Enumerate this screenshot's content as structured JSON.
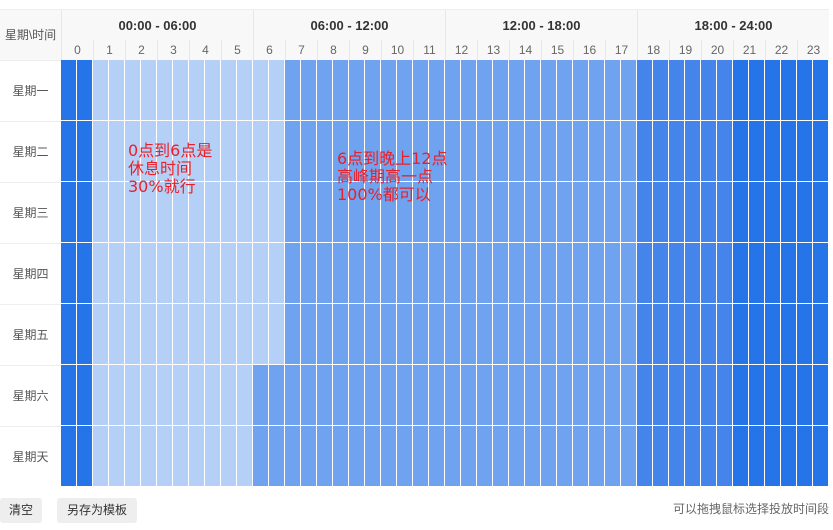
{
  "corner_label": "星期\\时间",
  "periods": [
    "00:00 - 06:00",
    "06:00 - 12:00",
    "12:00 - 18:00",
    "18:00 - 24:00"
  ],
  "hours": [
    "0",
    "1",
    "2",
    "3",
    "4",
    "5",
    "6",
    "7",
    "8",
    "9",
    "10",
    "11",
    "12",
    "13",
    "14",
    "15",
    "16",
    "17",
    "18",
    "19",
    "20",
    "21",
    "22",
    "23"
  ],
  "days": [
    "星期一",
    "星期二",
    "星期三",
    "星期四",
    "星期五",
    "星期六",
    "星期天"
  ],
  "level_colors": [
    "#ffffff",
    "#b5d0f6",
    "#6fa3ef",
    "#4584eb",
    "#2574e8"
  ],
  "schedule_levels": [
    [
      4,
      1,
      1,
      1,
      1,
      1,
      1,
      2,
      2,
      2,
      2,
      2,
      2,
      2,
      2,
      2,
      2,
      2,
      3,
      3,
      3,
      4,
      4,
      4
    ],
    [
      4,
      1,
      1,
      1,
      1,
      1,
      1,
      2,
      2,
      2,
      2,
      2,
      2,
      2,
      2,
      2,
      2,
      2,
      3,
      3,
      3,
      4,
      4,
      4
    ],
    [
      4,
      1,
      1,
      1,
      1,
      1,
      1,
      2,
      2,
      2,
      2,
      2,
      2,
      2,
      2,
      2,
      2,
      2,
      3,
      3,
      3,
      4,
      4,
      4
    ],
    [
      4,
      1,
      1,
      1,
      1,
      1,
      1,
      2,
      2,
      2,
      2,
      2,
      2,
      2,
      2,
      2,
      2,
      2,
      3,
      3,
      3,
      4,
      4,
      4
    ],
    [
      4,
      1,
      1,
      1,
      1,
      1,
      1,
      2,
      2,
      2,
      2,
      2,
      2,
      2,
      2,
      2,
      2,
      2,
      3,
      3,
      3,
      4,
      4,
      4
    ],
    [
      4,
      1,
      1,
      1,
      1,
      1,
      2,
      2,
      2,
      2,
      2,
      2,
      2,
      2,
      2,
      2,
      2,
      2,
      3,
      3,
      3,
      4,
      4,
      4
    ],
    [
      4,
      1,
      1,
      1,
      1,
      1,
      2,
      2,
      2,
      2,
      2,
      2,
      2,
      2,
      2,
      2,
      2,
      2,
      3,
      3,
      3,
      4,
      4,
      4
    ]
  ],
  "annotations": {
    "note1": "0点到6点是\n休息时间\n30%就行",
    "note2": "6点到晚上12点\n高峰期高一点\n100%都可以"
  },
  "footer": {
    "clear_label": "清空",
    "save_template_label": "另存为模板",
    "hint": "可以拖拽鼠标选择投放时间段"
  }
}
